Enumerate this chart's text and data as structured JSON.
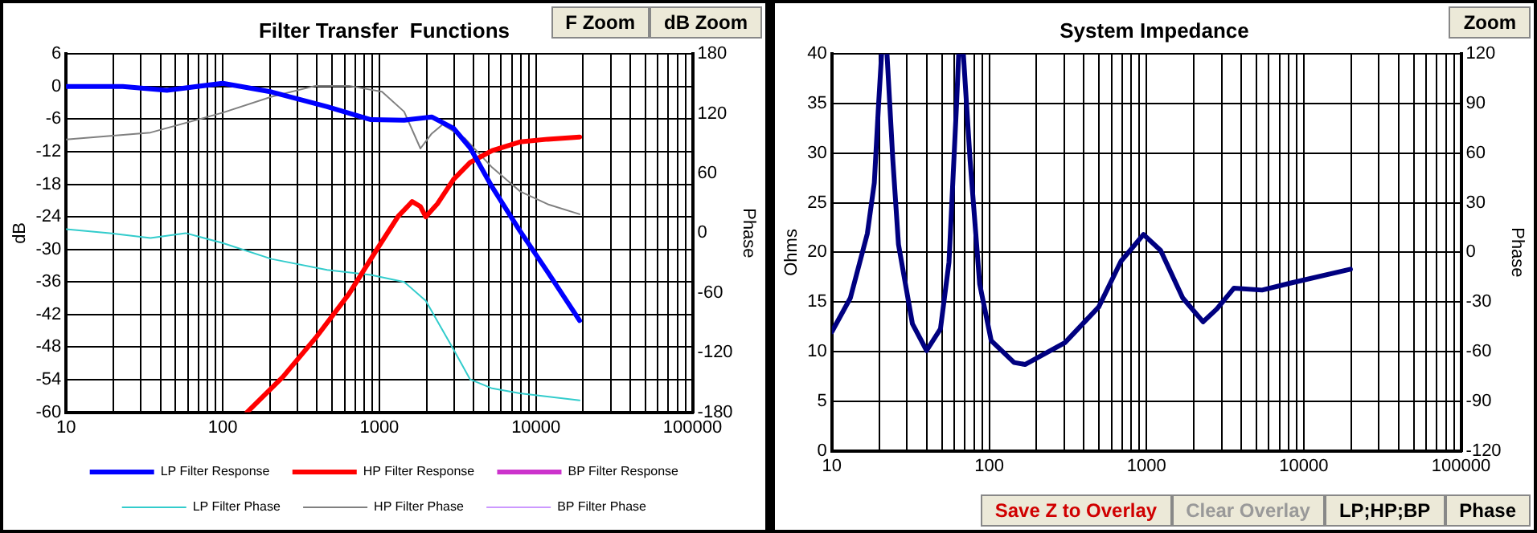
{
  "chart_data": [
    {
      "type": "line",
      "title": "Filter Transfer  Functions",
      "ylabel": "dB",
      "y2label": "Phase",
      "log": "x",
      "grid": true,
      "legend": "bottom",
      "marker": "none",
      "line_style": "solid",
      "xlim": [
        10,
        100000
      ],
      "xticks": [
        10,
        {
          "value": 20,
          "label": null
        },
        {
          "value": 30,
          "label": null
        },
        {
          "value": 40,
          "label": null
        },
        {
          "value": 50,
          "label": null
        },
        {
          "value": 60,
          "label": null
        },
        {
          "value": 70,
          "label": null
        },
        {
          "value": 80,
          "label": null
        },
        {
          "value": 90,
          "label": null
        },
        100,
        {
          "value": 200,
          "label": null
        },
        {
          "value": 300,
          "label": null
        },
        {
          "value": 400,
          "label": null
        },
        {
          "value": 500,
          "label": null
        },
        {
          "value": 600,
          "label": null
        },
        {
          "value": 700,
          "label": null
        },
        {
          "value": 800,
          "label": null
        },
        {
          "value": 900,
          "label": null
        },
        1000,
        {
          "value": 2000,
          "label": null
        },
        {
          "value": 3000,
          "label": null
        },
        {
          "value": 4000,
          "label": null
        },
        {
          "value": 5000,
          "label": null
        },
        {
          "value": 6000,
          "label": null
        },
        {
          "value": 7000,
          "label": null
        },
        {
          "value": 8000,
          "label": null
        },
        {
          "value": 9000,
          "label": null
        },
        10000,
        {
          "value": 20000,
          "label": null
        },
        {
          "value": 30000,
          "label": null
        },
        {
          "value": 40000,
          "label": null
        },
        {
          "value": 50000,
          "label": null
        },
        {
          "value": 60000,
          "label": null
        },
        {
          "value": 70000,
          "label": null
        },
        {
          "value": 80000,
          "label": null
        },
        {
          "value": 90000,
          "label": null
        },
        100000
      ],
      "ylim": [
        -60,
        6
      ],
      "yticks": [
        -60,
        -54,
        -48,
        -42,
        -36,
        -30,
        -24,
        -18,
        -12,
        -6,
        0,
        6
      ],
      "y2lim": [
        -180,
        180
      ],
      "y2ticks": [
        -180,
        -120,
        -60,
        0,
        60,
        120,
        180
      ],
      "annotations": [
        "F Zoom",
        "dB Zoom"
      ],
      "series": [
        {
          "name": "LP Filter Response",
          "color": "#0000ff",
          "x": [
            10,
            23,
            44,
            100,
            205,
            464,
            884,
            1440,
            2160,
            2980,
            3800,
            5250,
            7900,
            11900,
            19000
          ],
          "values": [
            0,
            0,
            -0.7,
            0.6,
            -1,
            -3.7,
            -6.1,
            -6.2,
            -5.6,
            -7.7,
            -11.3,
            -18.5,
            -26.6,
            -34.2,
            -43.1
          ]
        },
        {
          "name": "HP Filter Response",
          "color": "#ff0000",
          "x": [
            143,
            242,
            392,
            640,
            960,
            1320,
            1620,
            1830,
            1980,
            2350,
            2980,
            3800,
            5250,
            7900,
            11900,
            19000
          ],
          "values": [
            -60,
            -53.5,
            -46.3,
            -38.2,
            -30.1,
            -23.9,
            -21.2,
            -22.1,
            -24,
            -21.6,
            -17.1,
            -14,
            -11.8,
            -10.2,
            -9.7,
            -9.3
          ]
        },
        {
          "name": "BP Filter Response",
          "color": "#cc33cc"
        },
        {
          "name": "LP Filter Phase",
          "color": "#33cccc",
          "axis": "y2",
          "x": [
            10,
            19,
            34.6,
            58,
            100,
            205,
            464,
            884,
            1440,
            1980,
            2980,
            3800,
            5250,
            7900,
            19000
          ],
          "values": [
            4,
            0,
            -5,
            0,
            -10,
            -26,
            -37,
            -42,
            -49,
            -68,
            -117,
            -147,
            -156,
            -161,
            -168
          ]
        },
        {
          "name": "HP Filter Phase",
          "color": "#808080",
          "axis": "y2",
          "x": [
            10,
            34.6,
            100,
            205,
            392,
            640,
            1040,
            1440,
            1830,
            2160,
            2530,
            3530,
            5250,
            7900,
            11900,
            19000
          ],
          "values": [
            94,
            101,
            121,
            137,
            148,
            148,
            142,
            122,
            85,
            100,
            109,
            95,
            66,
            42,
            29,
            19
          ]
        },
        {
          "name": "BP Filter Phase",
          "color": "#cc99ff",
          "axis": "y2"
        }
      ]
    },
    {
      "type": "line",
      "title": "System Impedance",
      "ylabel": "Ohms",
      "y2label": "Phase",
      "log": "x",
      "grid": true,
      "marker": "none",
      "line_style": "solid",
      "xlim": [
        10,
        100000
      ],
      "xticks": [
        10,
        {
          "value": 20,
          "label": null
        },
        {
          "value": 30,
          "label": null
        },
        {
          "value": 40,
          "label": null
        },
        {
          "value": 50,
          "label": null
        },
        {
          "value": 60,
          "label": null
        },
        {
          "value": 70,
          "label": null
        },
        {
          "value": 80,
          "label": null
        },
        {
          "value": 90,
          "label": null
        },
        100,
        {
          "value": 200,
          "label": null
        },
        {
          "value": 300,
          "label": null
        },
        {
          "value": 400,
          "label": null
        },
        {
          "value": 500,
          "label": null
        },
        {
          "value": 600,
          "label": null
        },
        {
          "value": 700,
          "label": null
        },
        {
          "value": 800,
          "label": null
        },
        {
          "value": 900,
          "label": null
        },
        1000,
        {
          "value": 2000,
          "label": null
        },
        {
          "value": 3000,
          "label": null
        },
        {
          "value": 4000,
          "label": null
        },
        {
          "value": 5000,
          "label": null
        },
        {
          "value": 6000,
          "label": null
        },
        {
          "value": 7000,
          "label": null
        },
        {
          "value": 8000,
          "label": null
        },
        {
          "value": 9000,
          "label": null
        },
        10000,
        {
          "value": 20000,
          "label": null
        },
        {
          "value": 30000,
          "label": null
        },
        {
          "value": 40000,
          "label": null
        },
        {
          "value": 50000,
          "label": null
        },
        {
          "value": 60000,
          "label": null
        },
        {
          "value": 70000,
          "label": null
        },
        {
          "value": 80000,
          "label": null
        },
        {
          "value": 90000,
          "label": null
        },
        100000
      ],
      "ylim": [
        0,
        40
      ],
      "yticks": [
        0,
        5,
        10,
        15,
        20,
        25,
        30,
        35,
        40
      ],
      "y2lim": [
        -120,
        120
      ],
      "y2ticks": [
        -120,
        -90,
        -60,
        -30,
        0,
        30,
        60,
        90,
        120
      ],
      "annotations": [
        "Zoom",
        "Save Z to Overlay",
        "Clear Overlay",
        "LP;HP;BP",
        "Phase"
      ],
      "series": [
        {
          "color": "#000080",
          "x": [
            10,
            13.1,
            16.8,
            18.6,
            19.8,
            20.7,
            21.5,
            22.4,
            24.4,
            26.5,
            32.5,
            40,
            49,
            55.5,
            62,
            64,
            66,
            68.5,
            75.6,
            87,
            103,
            144,
            169,
            303,
            497,
            688,
            957,
            1230,
            1700,
            2290,
            2800,
            3600,
            5430,
            8200,
            19800
          ],
          "values": [
            12,
            15.4,
            21.9,
            27,
            34.9,
            40,
            null,
            40,
            29.3,
            20.8,
            12.8,
            10.1,
            12.3,
            19,
            34.9,
            40,
            null,
            40,
            29.3,
            16.8,
            11.1,
            8.9,
            8.7,
            10.9,
            14.5,
            19.1,
            21.8,
            20.2,
            15.4,
            13,
            14.3,
            16.4,
            16.2,
            16.9,
            18.3
          ]
        }
      ]
    }
  ]
}
